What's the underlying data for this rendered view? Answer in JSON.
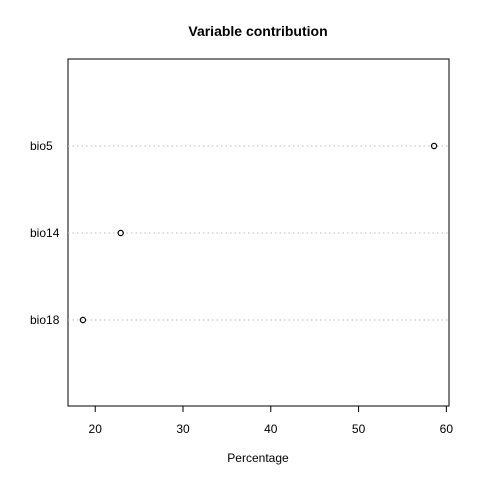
{
  "chart_data": {
    "type": "dotchart",
    "title": "Variable contribution",
    "xlabel": "Percentage",
    "ylabel": "",
    "categories": [
      "bio5",
      "bio14",
      "bio18"
    ],
    "values": [
      58.6,
      22.9,
      18.6
    ],
    "xlim": [
      16.9,
      60.3
    ],
    "xticks": [
      20,
      30,
      40,
      50,
      60
    ],
    "grid": "dotted horizontal lines per category",
    "marker": "open circle"
  }
}
